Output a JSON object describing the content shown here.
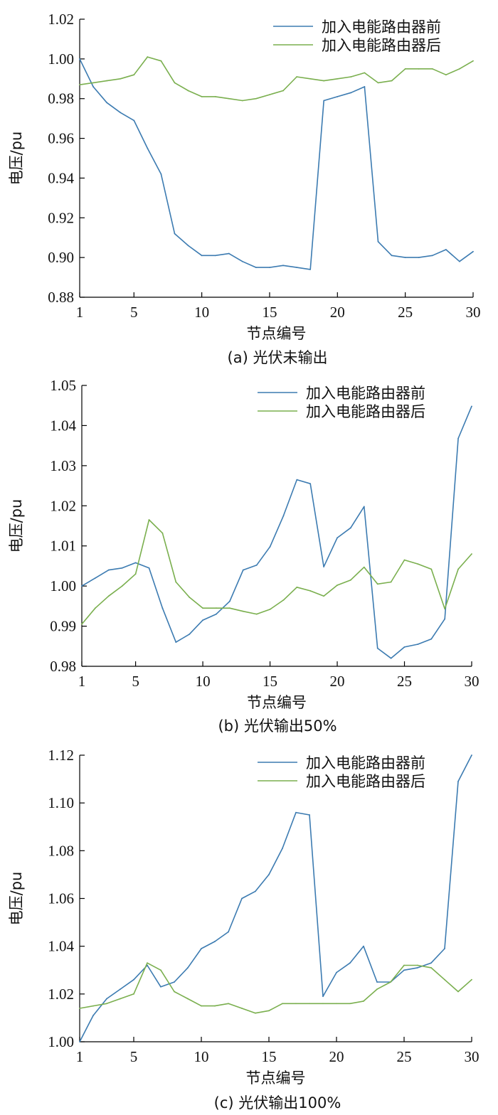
{
  "colors": {
    "before": "#3c7bb1",
    "after": "#7aaf4e"
  },
  "chart_data": [
    {
      "type": "line",
      "caption": "(a) 光伏未输出",
      "xlabel": "节点编号",
      "ylabel": "电压/pu",
      "xlim": [
        1,
        30
      ],
      "ylim": [
        0.88,
        1.02
      ],
      "xticks": [
        1,
        5,
        10,
        15,
        20,
        25,
        30
      ],
      "yticks": [
        0.88,
        0.9,
        0.92,
        0.94,
        0.96,
        0.98,
        1.0,
        1.02
      ],
      "ytick_labels": [
        "0.88",
        "0.90",
        "0.92",
        "0.94",
        "0.96",
        "0.98",
        "1.00",
        "1.02"
      ],
      "legend_position": "top-right",
      "x": [
        1,
        2,
        3,
        4,
        5,
        6,
        7,
        8,
        9,
        10,
        11,
        12,
        13,
        14,
        15,
        16,
        17,
        18,
        19,
        20,
        21,
        22,
        23,
        24,
        25,
        26,
        27,
        28,
        29,
        30
      ],
      "series": [
        {
          "name": "加入电能路由器前",
          "color_key": "before",
          "values": [
            1.0,
            0.986,
            0.978,
            0.973,
            0.969,
            0.955,
            0.942,
            0.912,
            0.906,
            0.901,
            0.901,
            0.902,
            0.898,
            0.895,
            0.895,
            0.896,
            0.895,
            0.894,
            0.979,
            0.981,
            0.983,
            0.986,
            0.908,
            0.901,
            0.9,
            0.9,
            0.901,
            0.904,
            0.898,
            0.903
          ]
        },
        {
          "name": "加入电能路由器后",
          "color_key": "after",
          "values": [
            0.987,
            0.988,
            0.989,
            0.99,
            0.992,
            1.001,
            0.999,
            0.988,
            0.984,
            0.981,
            0.981,
            0.98,
            0.979,
            0.98,
            0.982,
            0.984,
            0.991,
            0.99,
            0.989,
            0.99,
            0.991,
            0.993,
            0.988,
            0.989,
            0.995,
            0.995,
            0.995,
            0.992,
            0.995,
            0.999
          ]
        }
      ]
    },
    {
      "type": "line",
      "caption": "(b) 光伏输出50%",
      "xlabel": "节点编号",
      "ylabel": "电压/pu",
      "xlim": [
        1,
        30
      ],
      "ylim": [
        0.98,
        1.05
      ],
      "xticks": [
        1,
        5,
        10,
        15,
        20,
        25,
        30
      ],
      "yticks": [
        0.98,
        0.99,
        1.0,
        1.01,
        1.02,
        1.03,
        1.04,
        1.05
      ],
      "ytick_labels": [
        "0.98",
        "0.99",
        "1.00",
        "1.01",
        "1.02",
        "1.03",
        "1.04",
        "1.05"
      ],
      "legend_position": "top-right",
      "x": [
        1,
        2,
        3,
        4,
        5,
        6,
        7,
        8,
        9,
        10,
        11,
        12,
        13,
        14,
        15,
        16,
        17,
        18,
        19,
        20,
        21,
        22,
        23,
        24,
        25,
        26,
        27,
        28,
        29,
        30
      ],
      "series": [
        {
          "name": "加入电能路由器前",
          "color_key": "before",
          "values": [
            1.0,
            1.002,
            1.004,
            1.0045,
            1.0058,
            1.0045,
            0.9945,
            0.986,
            0.988,
            0.9915,
            0.993,
            0.9962,
            1.004,
            1.0052,
            1.0098,
            1.0175,
            1.0265,
            1.0255,
            1.0048,
            1.012,
            1.0145,
            1.0198,
            0.9845,
            0.982,
            0.9848,
            0.9855,
            0.9868,
            0.9918,
            1.0368,
            1.0448
          ]
        },
        {
          "name": "加入电能路由器后",
          "color_key": "after",
          "values": [
            0.9905,
            0.9945,
            0.9975,
            1.0,
            1.003,
            1.0165,
            1.0132,
            1.001,
            0.9972,
            0.9945,
            0.9945,
            0.9945,
            0.9937,
            0.993,
            0.9942,
            0.9965,
            0.9997,
            0.9988,
            0.9975,
            1.0002,
            1.0015,
            1.0047,
            1.0005,
            1.001,
            1.0065,
            1.0055,
            1.0042,
            0.9943,
            1.0042,
            1.008
          ]
        }
      ]
    },
    {
      "type": "line",
      "caption": "(c) 光伏输出100%",
      "xlabel": "节点编号",
      "ylabel": "电压/pu",
      "xlim": [
        1,
        30
      ],
      "ylim": [
        1.0,
        1.12
      ],
      "xticks": [
        1,
        5,
        10,
        15,
        20,
        25,
        30
      ],
      "yticks": [
        1.0,
        1.02,
        1.04,
        1.06,
        1.08,
        1.1,
        1.12
      ],
      "ytick_labels": [
        "1.00",
        "1.02",
        "1.04",
        "1.06",
        "1.08",
        "1.10",
        "1.12"
      ],
      "legend_position": "top-right",
      "x": [
        1,
        2,
        3,
        4,
        5,
        6,
        7,
        8,
        9,
        10,
        11,
        12,
        13,
        14,
        15,
        16,
        17,
        18,
        19,
        20,
        21,
        22,
        23,
        24,
        25,
        26,
        27,
        28,
        29,
        30
      ],
      "series": [
        {
          "name": "加入电能路由器前",
          "color_key": "before",
          "values": [
            1.0,
            1.011,
            1.018,
            1.022,
            1.026,
            1.032,
            1.023,
            1.025,
            1.031,
            1.039,
            1.042,
            1.046,
            1.06,
            1.063,
            1.07,
            1.081,
            1.096,
            1.095,
            1.019,
            1.029,
            1.033,
            1.04,
            1.025,
            1.025,
            1.03,
            1.031,
            1.033,
            1.039,
            1.109,
            1.12
          ]
        },
        {
          "name": "加入电能路由器后",
          "color_key": "after",
          "values": [
            1.014,
            1.015,
            1.016,
            1.018,
            1.02,
            1.033,
            1.03,
            1.021,
            1.018,
            1.015,
            1.015,
            1.016,
            1.014,
            1.012,
            1.013,
            1.016,
            1.016,
            1.016,
            1.016,
            1.016,
            1.016,
            1.017,
            1.022,
            1.025,
            1.032,
            1.032,
            1.031,
            1.026,
            1.021,
            1.026
          ]
        }
      ]
    }
  ]
}
